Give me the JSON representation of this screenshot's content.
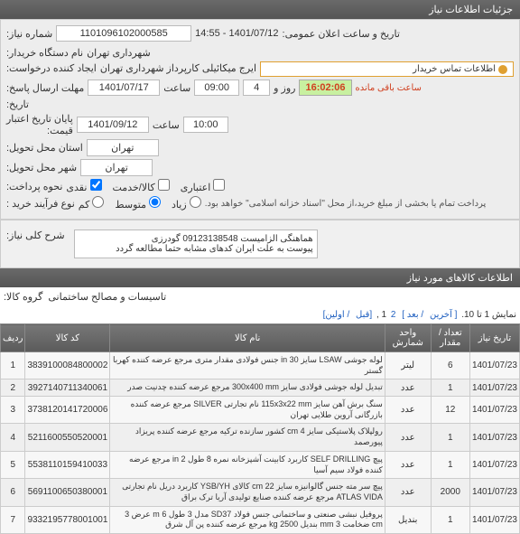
{
  "header1": "جزئیات اطلاعات نیاز",
  "info": {
    "need_number_label": "شماره نیاز:",
    "need_number": "1101096102000585",
    "requester_label": "نام دستگاه خریدار:",
    "requester": "شهرداری تهران",
    "creator_label": "ایجاد کننده درخواست:",
    "creator": "ایرج میکائیلی کارپرداز شهرداری تهران",
    "contact_btn": "اطلاعات تماس خریدار",
    "announce_label": "تاریخ و ساعت اعلان عمومی:",
    "announce_value": "1401/07/12 - 14:55",
    "deadline_reply_label": "مهلت ارسال پاسخ:",
    "date1": "1401/07/17",
    "time_label": "ساعت",
    "time1": "09:00",
    "day_label": "روز و",
    "days": "4",
    "timer": "16:02:06",
    "timer_label": "ساعت باقی مانده",
    "history_label": "تاریخ:",
    "validity_label": "پایان تاریخ اعتبار",
    "validity_sub": "قیمت:",
    "date2": "1401/09/12",
    "time2": "10:00",
    "province_label": "استان محل تحویل:",
    "province": "تهران",
    "city_label": "شهر محل تحویل:",
    "city": "تهران",
    "delivery_type_label": "نوع فرآیند خرید :",
    "payment_label": "نحوه پرداخت:",
    "pay_cash": "نقدی",
    "pay_goods": "کالا/خدمت",
    "pay_credit": "اعتباری",
    "pay_low": "کم",
    "pay_mid": "متوسط",
    "pay_high": "زیاد",
    "note": "پرداخت تمام یا بخشی از مبلغ خرید،از محل \"اسناد خزانه اسلامی\" خواهد بود."
  },
  "desc": {
    "label": "شرح کلی نیاز:",
    "line1": "هماهنگی الزامیست 09123138548 گودرزی",
    "line2": "پیوست به علت ایران کدهای مشابه حتما مطالعه گردد"
  },
  "header2": "اطلاعات کالاهای مورد نیاز",
  "group_label": "گروه کالا:",
  "group_value": "تاسیسات و مصالح ساختمانی",
  "pager": {
    "text": "نمایش 1 تا 10.",
    "last": "[ آخرین",
    "next": "/ بعد ]",
    "p2": "2",
    "p1": "1 ,",
    "prev": "[قبل",
    "first": "/ اولین]"
  },
  "table": {
    "headers": [
      "ردیف",
      "کد کالا",
      "نام کالا",
      "واحد شمارش",
      "تعداد / مقدار",
      "تاریخ نیاز"
    ],
    "rows": [
      {
        "r": "1",
        "code": "3839100084800002",
        "name": "لوله جوشی LSAW سایز 30 in جنس فولادی مقدار متری مرجع عرضه کننده کهربا گستر",
        "unit": "لیتر",
        "qty": "6",
        "date": "1401/07/23"
      },
      {
        "r": "2",
        "code": "3927140711340061",
        "name": "تبدیل لوله جوشی فولادی سایز 300x400 mm مرجع عرضه کننده چدنیت صدر",
        "unit": "عدد",
        "qty": "1",
        "date": "1401/07/23"
      },
      {
        "r": "3",
        "code": "3738120141720006",
        "name": "سنگ برش آهن سایز 115x3x22 mm نام تجارتی SILVER مرجع عرضه کننده بازرگانی آروین طلایی تهران",
        "unit": "عدد",
        "qty": "12",
        "date": "1401/07/23"
      },
      {
        "r": "4",
        "code": "5211600550520001",
        "name": "رولپلاک پلاستیکی سایز 4 cm کشور سازنده ترکیه مرجع عرضه کننده پریزاد پیورصمد",
        "unit": "عدد",
        "qty": "1",
        "date": "1401/07/23"
      },
      {
        "r": "5",
        "code": "5538110159410033",
        "name": "پیچ SELF DRILLING کاربرد کابینت آشپزخانه نمره 8 طول 2 in مرجع عرضه کننده فولاد سیم آسیا",
        "unit": "عدد",
        "qty": "1",
        "date": "1401/07/23"
      },
      {
        "r": "6",
        "code": "5691100650380001",
        "name": "پیچ سر مته جنس گالوانیزه سایز 22 cm کالای YSB/YH کاربرد دریل نام تجارتی ATLAS VIDA مرجع عرضه کننده صنایع تولیدی آریا ترک براق",
        "unit": "عدد",
        "qty": "2000",
        "date": "1401/07/23"
      },
      {
        "r": "7",
        "code": "9332195778001001",
        "name": "پروفیل نبشی صنعتی و ساختمانی جنس فولاد SD37 مدل 3 طول 6 m عرض 3 cm ضخامت 3 mm بندیل 2500 kg مرجع عرضه کننده پن آل شرق",
        "unit": "بندیل",
        "qty": "1",
        "date": "1401/07/23"
      }
    ]
  }
}
